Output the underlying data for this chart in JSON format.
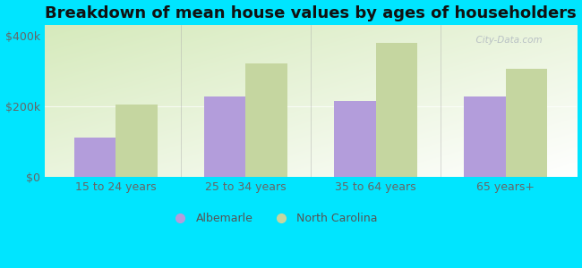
{
  "title": "Breakdown of mean house values by ages of householders",
  "categories": [
    "15 to 24 years",
    "25 to 34 years",
    "35 to 64 years",
    "65 years+"
  ],
  "albemarle_values": [
    110000,
    228000,
    215000,
    228000
  ],
  "nc_values": [
    205000,
    320000,
    380000,
    305000
  ],
  "albemarle_color": "#b39ddb",
  "nc_color": "#c5d6a0",
  "background_color": "#00e5ff",
  "ytick_labels": [
    "$0",
    "$200k",
    "$400k"
  ],
  "ytick_values": [
    0,
    200000,
    400000
  ],
  "ylim": [
    0,
    430000
  ],
  "bar_width": 0.32,
  "legend_labels": [
    "Albemarle",
    "North Carolina"
  ],
  "title_fontsize": 13,
  "tick_fontsize": 9,
  "legend_fontsize": 9,
  "watermark_text": "  City-Data.com"
}
